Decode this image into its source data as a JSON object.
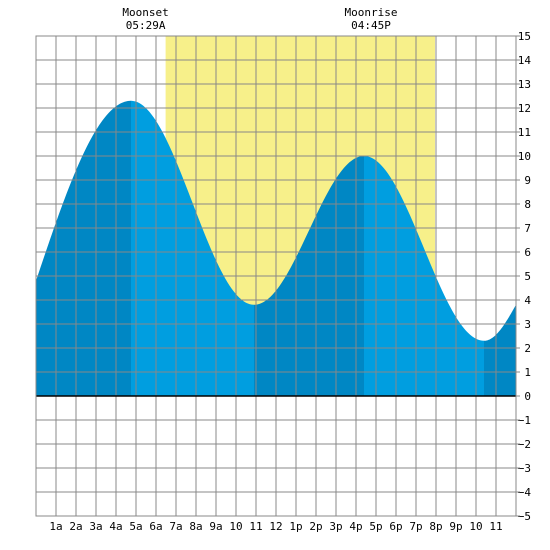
{
  "chart_data": {
    "type": "area",
    "title": "",
    "xlabel": "",
    "ylabel": "",
    "xlim": [
      0,
      24
    ],
    "ylim": [
      -5,
      15
    ],
    "grid": true,
    "x_tick_labels": [
      "1a",
      "2a",
      "3a",
      "4a",
      "5a",
      "6a",
      "7a",
      "8a",
      "9a",
      "10",
      "11",
      "12",
      "1p",
      "2p",
      "3p",
      "4p",
      "5p",
      "6p",
      "7p",
      "8p",
      "9p",
      "10",
      "11"
    ],
    "y_ticks": [
      -5,
      -4,
      -3,
      -2,
      -1,
      0,
      1,
      2,
      3,
      4,
      5,
      6,
      7,
      8,
      9,
      10,
      11,
      12,
      13,
      14,
      15
    ],
    "daylight": {
      "start_hour": 6.48,
      "end_hour": 19.95
    },
    "tide_extremes": [
      {
        "hour": 4.75,
        "height": 12.3,
        "kind": "high"
      },
      {
        "hour": 10.9,
        "height": 3.8,
        "kind": "low"
      },
      {
        "hour": 16.4,
        "height": 10.0,
        "kind": "high"
      },
      {
        "hour": 22.4,
        "height": 2.3,
        "kind": "low"
      }
    ],
    "tide_edges": [
      {
        "hour": 0,
        "height": 4.8
      },
      {
        "hour": 24,
        "height": 3.8
      }
    ],
    "annotations": [
      {
        "label": "Moonset",
        "time": "05:29A",
        "hour": 5.48
      },
      {
        "label": "Moonrise",
        "time": "04:45P",
        "hour": 16.75
      }
    ]
  },
  "colors": {
    "daylight": "#f7f08a",
    "tide_rising": "#0087c4",
    "tide_falling": "#009ee0",
    "grid": "#888888",
    "zero_line": "#000000",
    "background": "#ffffff"
  }
}
